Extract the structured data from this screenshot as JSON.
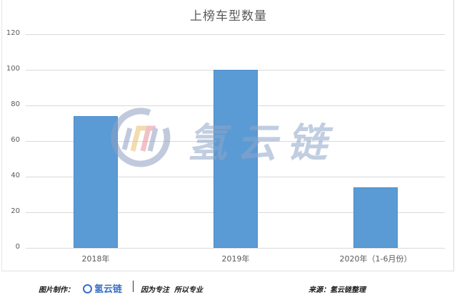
{
  "chart_data": {
    "type": "bar",
    "title": "上榜车型数量",
    "categories": [
      "2018年",
      "2019年",
      "2020年（1-6月份）"
    ],
    "values": [
      74,
      100,
      34
    ],
    "xlabel": "",
    "ylabel": "",
    "ylim": [
      0,
      120
    ],
    "yticks": [
      "0",
      "20",
      "40",
      "60",
      "80",
      "100",
      "120"
    ],
    "grid": true,
    "legend": "none",
    "bar_color": "#5b9bd5"
  },
  "watermark": {
    "text": "氢云链"
  },
  "footer": {
    "credit_label": "图片制作：",
    "brand": "氢云链",
    "slogan": "因为专注  所以专业",
    "source": "来源：氢云链整理"
  }
}
